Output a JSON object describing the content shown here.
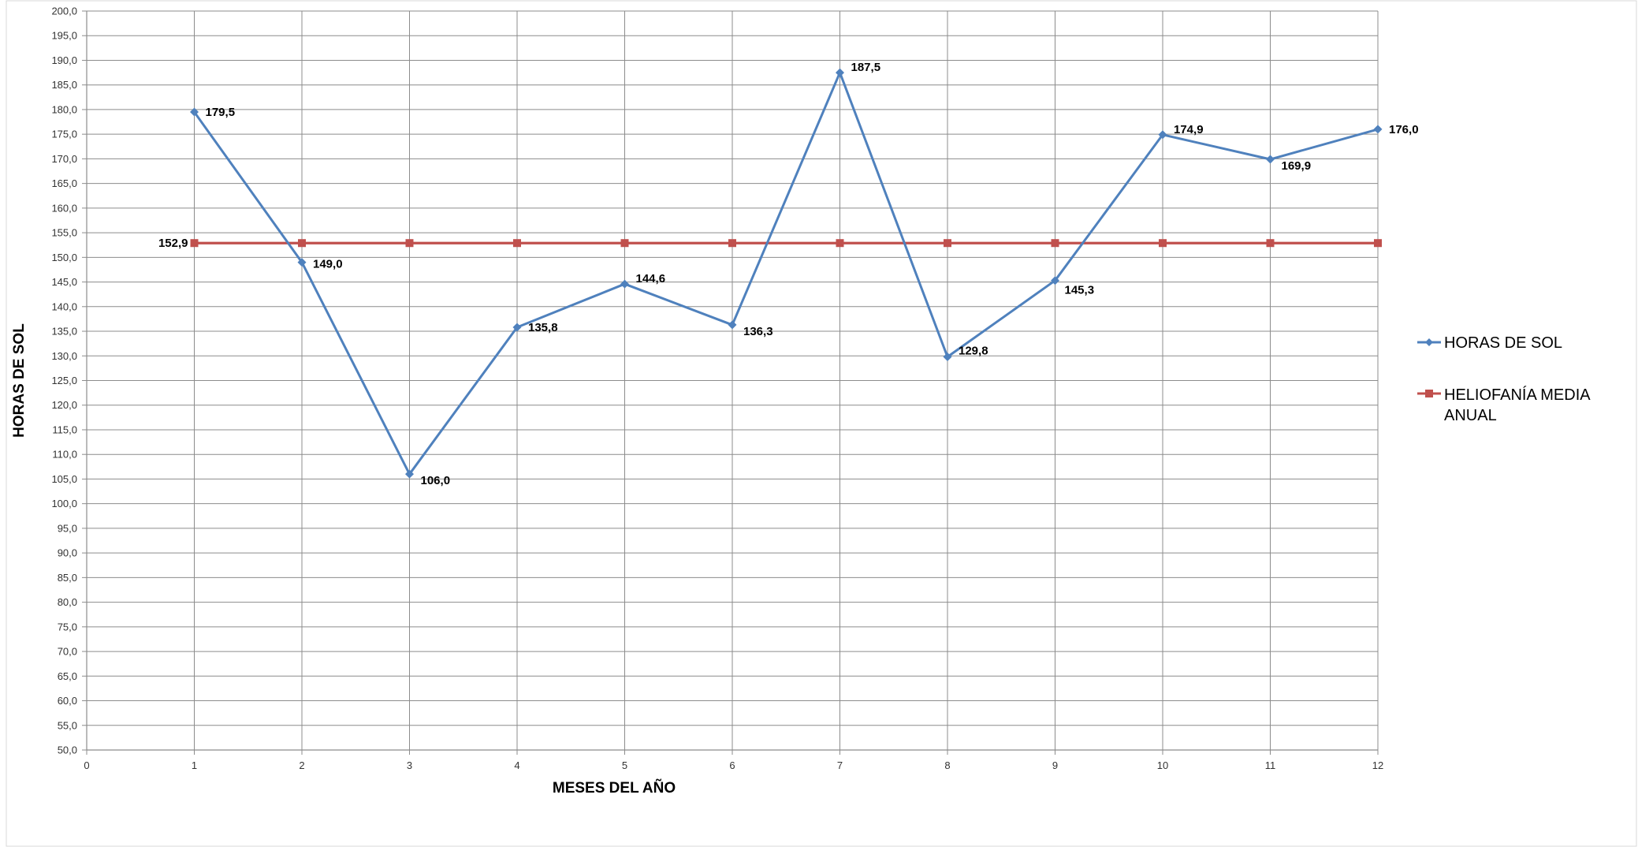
{
  "chart_data": {
    "type": "line",
    "xlabel": "MESES DEL AÑO",
    "ylabel": "HORAS DE SOL",
    "xlim": [
      0,
      12
    ],
    "ylim": [
      50,
      200
    ],
    "xticks": [
      0,
      1,
      2,
      3,
      4,
      5,
      6,
      7,
      8,
      9,
      10,
      11,
      12
    ],
    "yticks": [
      50,
      55,
      60,
      65,
      70,
      75,
      80,
      85,
      90,
      95,
      100,
      105,
      110,
      115,
      120,
      125,
      130,
      135,
      140,
      145,
      150,
      155,
      160,
      165,
      170,
      175,
      180,
      185,
      190,
      195,
      200
    ],
    "grid": true,
    "legend_position": "right",
    "decimal_separator": ",",
    "series": [
      {
        "name": "HORAS DE SOL",
        "color": "#4F81BD",
        "marker": "diamond",
        "x": [
          1,
          2,
          3,
          4,
          5,
          6,
          7,
          8,
          9,
          10,
          11,
          12
        ],
        "values": [
          179.5,
          149.0,
          106.0,
          135.8,
          144.6,
          136.3,
          187.5,
          129.8,
          145.3,
          174.9,
          169.9,
          176.0
        ],
        "data_labels": [
          "179,5",
          "149,0",
          "106,0",
          "135,8",
          "144,6",
          "136,3",
          "187,5",
          "129,8",
          "145,3",
          "174,9",
          "169,9",
          "176,0"
        ]
      },
      {
        "name": "HELIOFANÍA MEDIA ANUAL",
        "legend_lines": [
          "HELIOFANÍA MEDIA",
          "ANUAL"
        ],
        "color": "#C0504D",
        "marker": "square",
        "x": [
          1,
          2,
          3,
          4,
          5,
          6,
          7,
          8,
          9,
          10,
          11,
          12
        ],
        "values": [
          152.9,
          152.9,
          152.9,
          152.9,
          152.9,
          152.9,
          152.9,
          152.9,
          152.9,
          152.9,
          152.9,
          152.9
        ],
        "data_labels": [
          "152,9"
        ]
      }
    ]
  }
}
